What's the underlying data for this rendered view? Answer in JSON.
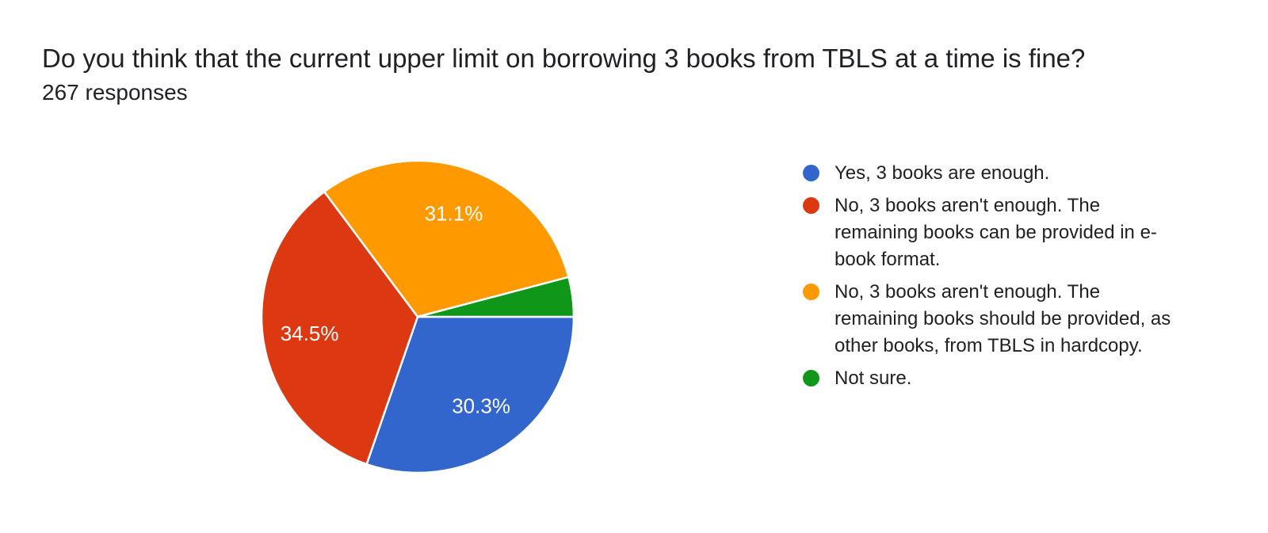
{
  "header": {
    "title": "Do you think that the current upper limit on borrowing 3 books from TBLS at a time is fine?",
    "responses": "267 responses"
  },
  "chart_data": {
    "type": "pie",
    "title": "Do you think that the current upper limit on borrowing 3 books from TBLS at a time is fine?",
    "subtitle": "267 responses",
    "legend_position": "right",
    "start_angle_deg_clockwise_from_east": 0,
    "slices": [
      {
        "label": "Yes, 3 books are enough.",
        "value": 30.3,
        "display": "30.3%",
        "color": "#3366CC",
        "label_shown": true
      },
      {
        "label": "No, 3 books aren't enough. The remaining books can be provided in e-book format.",
        "value": 34.5,
        "display": "34.5%",
        "color": "#DC3912",
        "label_shown": true
      },
      {
        "label": "No, 3 books aren't enough. The remaining books should be provided, as other books, from TBLS in hardcopy.",
        "value": 31.1,
        "display": "31.1%",
        "color": "#FF9900",
        "label_shown": true
      },
      {
        "label": "Not sure.",
        "value": 4.1,
        "display": "4.1%",
        "color": "#109618",
        "label_shown": false
      }
    ],
    "colors": {
      "background": "#ffffff",
      "slice_border": "#ffffff",
      "slice_percent_text": "#ffffff",
      "title_text": "#202124",
      "legend_text": "#212121"
    }
  }
}
